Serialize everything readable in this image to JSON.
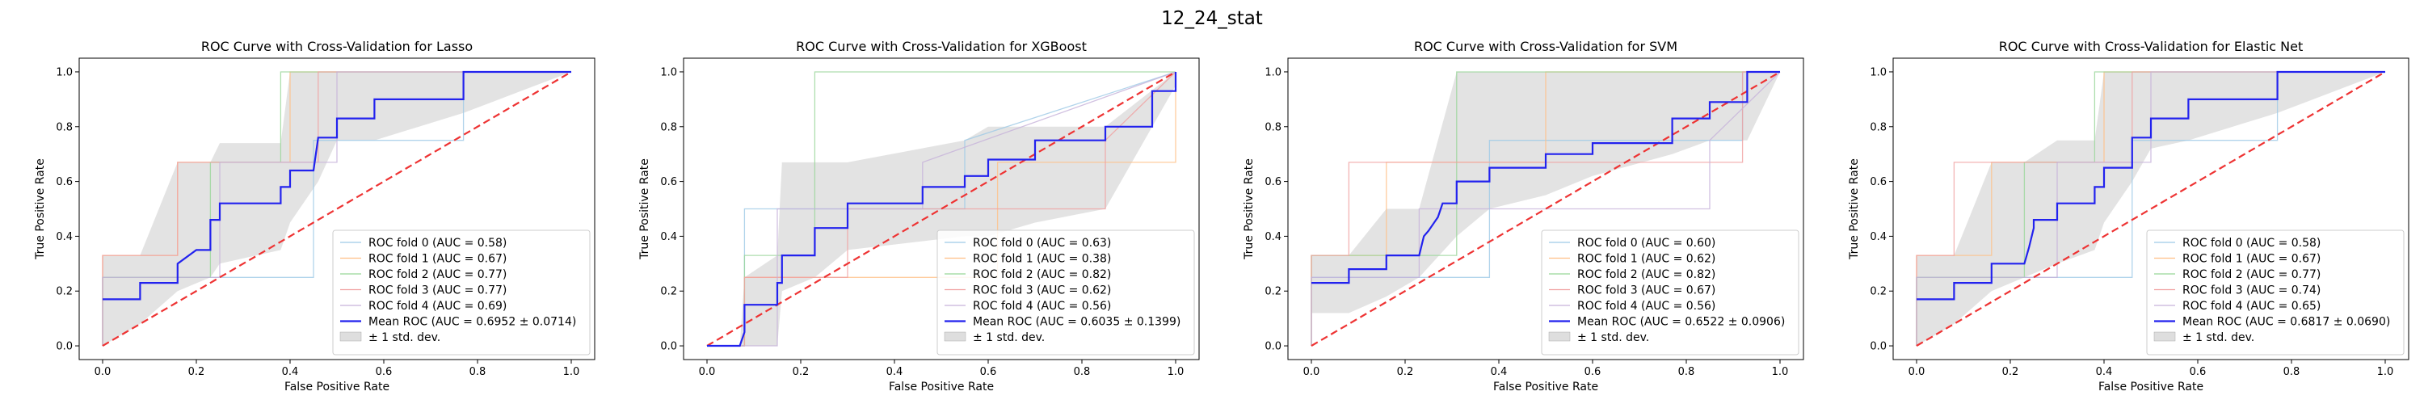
{
  "figure_title": "12_24_stat",
  "chart_data": [
    {
      "type": "line",
      "title": "ROC Curve with Cross-Validation for Lasso",
      "xlabel": "False Positive Rate",
      "ylabel": "True Positive Rate",
      "xlim": [
        -0.05,
        1.05
      ],
      "ylim": [
        -0.05,
        1.05
      ],
      "xticks": [
        "0.0",
        "0.2",
        "0.4",
        "0.6",
        "0.8",
        "1.0"
      ],
      "yticks": [
        "0.0",
        "0.2",
        "0.4",
        "0.6",
        "0.8",
        "1.0"
      ],
      "legend_position": "lower-right",
      "chance_line": {
        "x": [
          0,
          1
        ],
        "y": [
          0,
          1
        ],
        "color": "#ee3333"
      },
      "std_band": {
        "label": "± 1 std. dev.",
        "x": [
          0,
          0.08,
          0.16,
          0.23,
          0.25,
          0.38,
          0.4,
          0.46,
          0.5,
          0.58,
          0.77,
          1.0
        ],
        "upper": [
          0.33,
          0.33,
          0.67,
          0.67,
          0.74,
          0.74,
          1.0,
          1.0,
          1.0,
          1.0,
          1.0,
          1.0
        ],
        "lower": [
          0.0,
          0.08,
          0.2,
          0.25,
          0.3,
          0.35,
          0.45,
          0.6,
          0.75,
          0.75,
          0.85,
          1.0
        ]
      },
      "folds": [
        {
          "name": "ROC fold 0 (AUC = 0.58)",
          "color": "#9ec9e6",
          "x": [
            0,
            0,
            0.08,
            0.08,
            0.45,
            0.45,
            0.77,
            0.77,
            1
          ],
          "y": [
            0,
            0.25,
            0.25,
            0.25,
            0.25,
            0.75,
            0.75,
            1,
            1
          ]
        },
        {
          "name": "ROC fold 1 (AUC = 0.67)",
          "color": "#ffbf86",
          "x": [
            0,
            0,
            0.16,
            0.16,
            0.4,
            0.4,
            1
          ],
          "y": [
            0,
            0.33,
            0.33,
            0.67,
            0.67,
            1,
            1
          ]
        },
        {
          "name": "ROC fold 2 (AUC = 0.77)",
          "color": "#98d698",
          "x": [
            0,
            0,
            0.23,
            0.23,
            0.38,
            0.38,
            1
          ],
          "y": [
            0,
            0.25,
            0.25,
            0.67,
            0.67,
            1,
            1
          ]
        },
        {
          "name": "ROC fold 3 (AUC = 0.77)",
          "color": "#f0a0a0",
          "x": [
            0,
            0,
            0.16,
            0.16,
            0.46,
            0.46,
            1
          ],
          "y": [
            0,
            0.33,
            0.33,
            0.67,
            0.67,
            1,
            1
          ]
        },
        {
          "name": "ROC fold 4 (AUC = 0.69)",
          "color": "#c6b2d9",
          "x": [
            0,
            0,
            0.08,
            0.08,
            0.25,
            0.25,
            0.5,
            0.5,
            1
          ],
          "y": [
            0,
            0.25,
            0.25,
            0.25,
            0.25,
            0.67,
            0.67,
            1,
            1
          ]
        }
      ],
      "mean_roc": {
        "name": "Mean ROC (AUC = 0.6952 ± 0.0714)",
        "color": "#2222ee",
        "x": [
          0,
          0.08,
          0.08,
          0.16,
          0.16,
          0.2,
          0.23,
          0.23,
          0.25,
          0.25,
          0.38,
          0.38,
          0.39,
          0.4,
          0.4,
          0.45,
          0.46,
          0.5,
          0.5,
          0.58,
          0.58,
          0.77,
          0.77,
          1.0
        ],
        "y": [
          0.17,
          0.17,
          0.23,
          0.23,
          0.3,
          0.35,
          0.35,
          0.46,
          0.46,
          0.52,
          0.52,
          0.58,
          0.58,
          0.58,
          0.64,
          0.64,
          0.76,
          0.76,
          0.83,
          0.83,
          0.9,
          0.9,
          1.0,
          1.0
        ]
      }
    },
    {
      "type": "line",
      "title": "ROC Curve with Cross-Validation for XGBoost",
      "xlabel": "False Positive Rate",
      "ylabel": "True Positive Rate",
      "xlim": [
        -0.05,
        1.05
      ],
      "ylim": [
        -0.05,
        1.05
      ],
      "xticks": [
        "0.0",
        "0.2",
        "0.4",
        "0.6",
        "0.8",
        "1.0"
      ],
      "yticks": [
        "0.0",
        "0.2",
        "0.4",
        "0.6",
        "0.8",
        "1.0"
      ],
      "legend_position": "lower-right",
      "chance_line": {
        "x": [
          0,
          1
        ],
        "y": [
          0,
          1
        ],
        "color": "#ee3333"
      },
      "std_band": {
        "label": "± 1 std. dev.",
        "x": [
          0,
          0.07,
          0.08,
          0.15,
          0.16,
          0.23,
          0.3,
          0.55,
          0.6,
          0.7,
          0.85,
          1.0
        ],
        "upper": [
          0,
          0.0,
          0.25,
          0.33,
          0.67,
          0.67,
          0.67,
          0.75,
          0.8,
          0.8,
          0.8,
          1.0
        ],
        "lower": [
          0,
          0.0,
          0.0,
          0.0,
          0.2,
          0.25,
          0.35,
          0.4,
          0.4,
          0.45,
          0.5,
          0.95
        ]
      },
      "folds": [
        {
          "name": "ROC fold 0 (AUC = 0.63)",
          "color": "#9ec9e6",
          "x": [
            0,
            0.08,
            0.08,
            0.55,
            0.55,
            1
          ],
          "y": [
            0,
            0,
            0.5,
            0.5,
            0.75,
            1
          ]
        },
        {
          "name": "ROC fold 1 (AUC = 0.38)",
          "color": "#ffbf86",
          "x": [
            0,
            0.08,
            0.08,
            0.62,
            0.62,
            1,
            1
          ],
          "y": [
            0,
            0,
            0.25,
            0.25,
            0.67,
            0.67,
            1
          ]
        },
        {
          "name": "ROC fold 2 (AUC = 0.82)",
          "color": "#98d698",
          "x": [
            0,
            0.08,
            0.08,
            0.23,
            0.23,
            1
          ],
          "y": [
            0,
            0,
            0.33,
            0.33,
            1,
            1
          ]
        },
        {
          "name": "ROC fold 3 (AUC = 0.62)",
          "color": "#f0a0a0",
          "x": [
            0,
            0.08,
            0.08,
            0.3,
            0.3,
            0.85,
            0.85,
            1
          ],
          "y": [
            0,
            0,
            0.25,
            0.25,
            0.5,
            0.5,
            0.75,
            1
          ]
        },
        {
          "name": "ROC fold 4 (AUC = 0.56)",
          "color": "#c6b2d9",
          "x": [
            0,
            0.15,
            0.15,
            0.46,
            0.46,
            1
          ],
          "y": [
            0,
            0,
            0.5,
            0.5,
            0.67,
            1
          ]
        }
      ],
      "mean_roc": {
        "name": "Mean ROC (AUC = 0.6035 ± 0.1399)",
        "color": "#2222ee",
        "x": [
          0,
          0.07,
          0.08,
          0.08,
          0.15,
          0.15,
          0.16,
          0.16,
          0.23,
          0.23,
          0.3,
          0.3,
          0.46,
          0.46,
          0.55,
          0.55,
          0.6,
          0.6,
          0.7,
          0.7,
          0.85,
          0.85,
          0.95,
          0.95,
          1.0,
          1.0
        ],
        "y": [
          0,
          0,
          0.05,
          0.15,
          0.15,
          0.23,
          0.23,
          0.33,
          0.33,
          0.43,
          0.43,
          0.52,
          0.52,
          0.58,
          0.58,
          0.62,
          0.62,
          0.68,
          0.68,
          0.75,
          0.75,
          0.8,
          0.8,
          0.93,
          0.93,
          1.0
        ]
      }
    },
    {
      "type": "line",
      "title": "ROC Curve with Cross-Validation for SVM",
      "xlabel": "False Positive Rate",
      "ylabel": "True Positive Rate",
      "xlim": [
        -0.05,
        1.05
      ],
      "ylim": [
        -0.05,
        1.05
      ],
      "xticks": [
        "0.0",
        "0.2",
        "0.4",
        "0.6",
        "0.8",
        "1.0"
      ],
      "yticks": [
        "0.0",
        "0.2",
        "0.4",
        "0.6",
        "0.8",
        "1.0"
      ],
      "legend_position": "lower-right",
      "chance_line": {
        "x": [
          0,
          1
        ],
        "y": [
          0,
          1
        ],
        "color": "#ee3333"
      },
      "std_band": {
        "label": "± 1 std. dev.",
        "x": [
          0,
          0.08,
          0.16,
          0.23,
          0.31,
          0.38,
          0.5,
          0.6,
          0.77,
          0.85,
          0.93,
          1.0
        ],
        "upper": [
          0.33,
          0.33,
          0.5,
          0.5,
          1.0,
          1.0,
          1.0,
          1.0,
          1.0,
          1.0,
          1.0,
          1.0
        ],
        "lower": [
          0.12,
          0.12,
          0.18,
          0.25,
          0.4,
          0.5,
          0.55,
          0.62,
          0.7,
          0.75,
          0.75,
          1.0
        ]
      },
      "folds": [
        {
          "name": "ROC fold 0 (AUC = 0.60)",
          "color": "#9ec9e6",
          "x": [
            0,
            0,
            0.16,
            0.16,
            0.38,
            0.38,
            0.92,
            0.92,
            1
          ],
          "y": [
            0,
            0.25,
            0.25,
            0.25,
            0.25,
            0.75,
            0.75,
            1,
            1
          ]
        },
        {
          "name": "ROC fold 1 (AUC = 0.62)",
          "color": "#ffbf86",
          "x": [
            0,
            0,
            0.16,
            0.16,
            0.5,
            0.5,
            1
          ],
          "y": [
            0,
            0.33,
            0.33,
            0.67,
            0.67,
            1,
            1
          ]
        },
        {
          "name": "ROC fold 2 (AUC = 0.82)",
          "color": "#98d698",
          "x": [
            0,
            0,
            0.31,
            0.31,
            1
          ],
          "y": [
            0,
            0.33,
            0.33,
            1,
            1
          ]
        },
        {
          "name": "ROC fold 3 (AUC = 0.67)",
          "color": "#f0a0a0",
          "x": [
            0,
            0,
            0.08,
            0.08,
            0.92,
            0.92,
            1
          ],
          "y": [
            0,
            0.33,
            0.33,
            0.67,
            0.67,
            1,
            1
          ]
        },
        {
          "name": "ROC fold 4 (AUC = 0.56)",
          "color": "#c6b2d9",
          "x": [
            0,
            0,
            0.23,
            0.23,
            0.85,
            0.85,
            1
          ],
          "y": [
            0,
            0.25,
            0.25,
            0.5,
            0.5,
            0.75,
            1
          ]
        }
      ],
      "mean_roc": {
        "name": "Mean ROC (AUC = 0.6522 ± 0.0906)",
        "color": "#2222ee",
        "x": [
          0,
          0.08,
          0.08,
          0.16,
          0.16,
          0.23,
          0.24,
          0.25,
          0.27,
          0.28,
          0.31,
          0.31,
          0.38,
          0.38,
          0.5,
          0.5,
          0.6,
          0.6,
          0.77,
          0.77,
          0.85,
          0.85,
          0.93,
          0.93,
          1.0
        ],
        "y": [
          0.23,
          0.23,
          0.28,
          0.28,
          0.33,
          0.33,
          0.4,
          0.42,
          0.47,
          0.52,
          0.52,
          0.6,
          0.6,
          0.65,
          0.65,
          0.7,
          0.7,
          0.74,
          0.74,
          0.83,
          0.83,
          0.89,
          0.89,
          1.0,
          1.0
        ]
      }
    },
    {
      "type": "line",
      "title": "ROC Curve with Cross-Validation for Elastic Net",
      "xlabel": "False Positive Rate",
      "ylabel": "True Positive Rate",
      "xlim": [
        -0.05,
        1.05
      ],
      "ylim": [
        -0.05,
        1.05
      ],
      "xticks": [
        "0.0",
        "0.2",
        "0.4",
        "0.6",
        "0.8",
        "1.0"
      ],
      "yticks": [
        "0.0",
        "0.2",
        "0.4",
        "0.6",
        "0.8",
        "1.0"
      ],
      "legend_position": "lower-right",
      "chance_line": {
        "x": [
          0,
          1
        ],
        "y": [
          0,
          1
        ],
        "color": "#ee3333"
      },
      "std_band": {
        "label": "± 1 std. dev.",
        "x": [
          0,
          0.08,
          0.16,
          0.23,
          0.3,
          0.38,
          0.4,
          0.46,
          0.5,
          0.58,
          0.77,
          1.0
        ],
        "upper": [
          0.33,
          0.33,
          0.67,
          0.67,
          0.75,
          0.75,
          1.0,
          1.0,
          1.0,
          1.0,
          1.0,
          1.0
        ],
        "lower": [
          0.0,
          0.08,
          0.2,
          0.25,
          0.3,
          0.35,
          0.45,
          0.6,
          0.72,
          0.75,
          0.85,
          1.0
        ]
      },
      "folds": [
        {
          "name": "ROC fold 0 (AUC = 0.58)",
          "color": "#9ec9e6",
          "x": [
            0,
            0,
            0.08,
            0.08,
            0.46,
            0.46,
            0.77,
            0.77,
            1
          ],
          "y": [
            0,
            0.25,
            0.25,
            0.25,
            0.25,
            0.75,
            0.75,
            1,
            1
          ]
        },
        {
          "name": "ROC fold 1 (AUC = 0.67)",
          "color": "#ffbf86",
          "x": [
            0,
            0,
            0.16,
            0.16,
            0.4,
            0.4,
            1
          ],
          "y": [
            0,
            0.33,
            0.33,
            0.67,
            0.67,
            1,
            1
          ]
        },
        {
          "name": "ROC fold 2 (AUC = 0.77)",
          "color": "#98d698",
          "x": [
            0,
            0,
            0.23,
            0.23,
            0.38,
            0.38,
            1
          ],
          "y": [
            0,
            0.25,
            0.25,
            0.67,
            0.67,
            1,
            1
          ]
        },
        {
          "name": "ROC fold 3 (AUC = 0.74)",
          "color": "#f0a0a0",
          "x": [
            0,
            0,
            0.08,
            0.08,
            0.46,
            0.46,
            1
          ],
          "y": [
            0,
            0.33,
            0.33,
            0.67,
            0.67,
            1,
            1
          ]
        },
        {
          "name": "ROC fold 4 (AUC = 0.65)",
          "color": "#c6b2d9",
          "x": [
            0,
            0,
            0.16,
            0.16,
            0.3,
            0.3,
            0.5,
            0.5,
            1
          ],
          "y": [
            0,
            0.25,
            0.25,
            0.25,
            0.25,
            0.67,
            0.67,
            1,
            1
          ]
        }
      ],
      "mean_roc": {
        "name": "Mean ROC (AUC = 0.6817 ± 0.0690)",
        "color": "#2222ee",
        "x": [
          0,
          0.08,
          0.08,
          0.16,
          0.16,
          0.23,
          0.24,
          0.25,
          0.25,
          0.3,
          0.3,
          0.38,
          0.38,
          0.4,
          0.4,
          0.46,
          0.46,
          0.5,
          0.5,
          0.58,
          0.58,
          0.77,
          0.77,
          1.0
        ],
        "y": [
          0.17,
          0.17,
          0.23,
          0.23,
          0.3,
          0.3,
          0.36,
          0.43,
          0.46,
          0.46,
          0.52,
          0.52,
          0.58,
          0.58,
          0.65,
          0.65,
          0.76,
          0.76,
          0.83,
          0.83,
          0.9,
          0.9,
          1.0,
          1.0
        ]
      }
    }
  ]
}
